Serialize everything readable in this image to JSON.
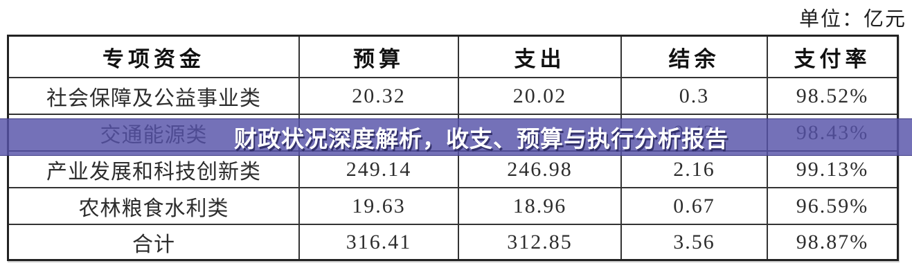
{
  "unit_label": "单位：亿元",
  "banner": {
    "headline": "财政状况深度解析，收支、预算与执行分析报告",
    "bg_color": "#5552a8",
    "text_color": "#ffffff",
    "shadow_color": "#2c2a64"
  },
  "table": {
    "columns": [
      "专项资金",
      "预算",
      "支出",
      "结余",
      "支付率"
    ],
    "rows": [
      {
        "name": "社会保障及公益事业类",
        "budget": "20.32",
        "spend": "20.02",
        "balance": "0.3",
        "rate": "98.52%"
      },
      {
        "name": "交通能源类",
        "budget": "",
        "spend": "",
        "balance": "0.43",
        "rate": "98.43%"
      },
      {
        "name": "产业发展和科技创新类",
        "budget": "249.14",
        "spend": "246.98",
        "balance": "2.16",
        "rate": "99.13%"
      },
      {
        "name": "农林粮食水利类",
        "budget": "19.63",
        "spend": "18.96",
        "balance": "0.67",
        "rate": "96.59%"
      },
      {
        "name": "合计",
        "budget": "316.41",
        "spend": "312.85",
        "balance": "3.56",
        "rate": "98.87%"
      }
    ]
  }
}
